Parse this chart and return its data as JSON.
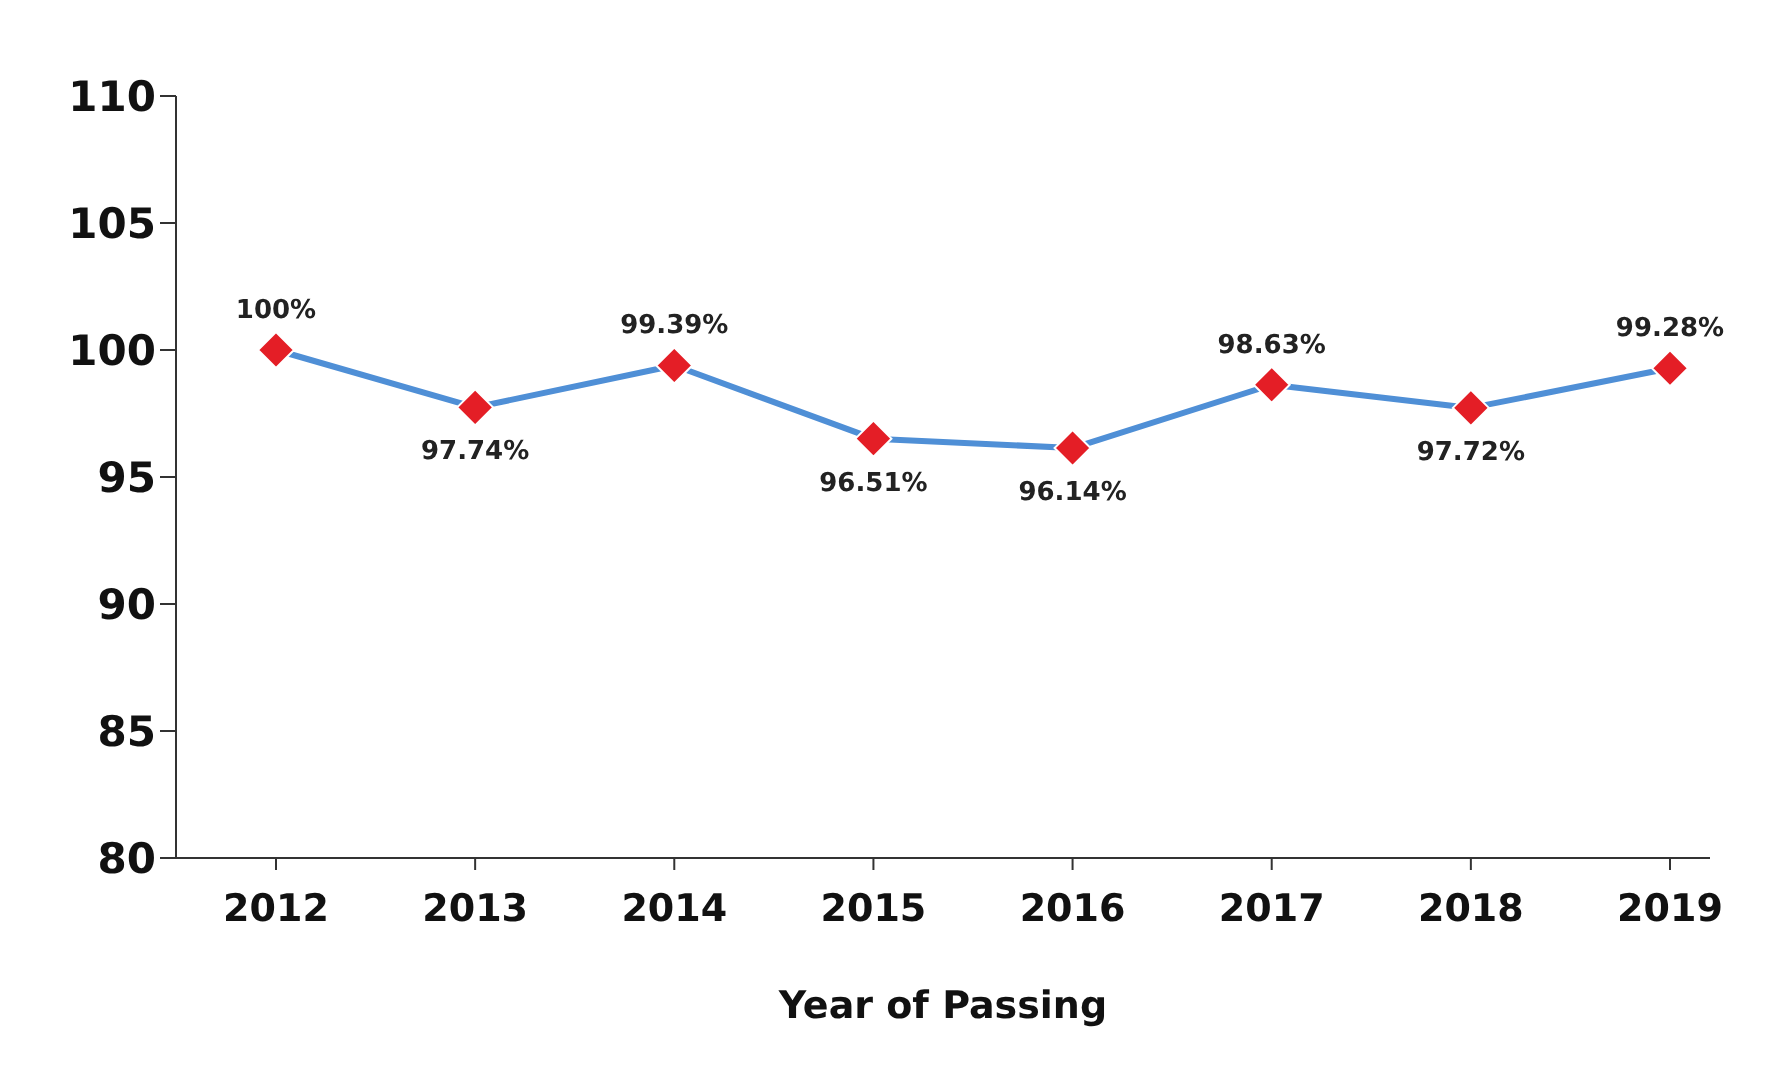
{
  "chart_data": {
    "type": "line",
    "xlabel": "Year of Passing",
    "categories": [
      "2012",
      "2013",
      "2014",
      "2015",
      "2016",
      "2017",
      "2018",
      "2019"
    ],
    "series": [
      {
        "color": "#4f8fd6",
        "colors": [
          "#e41e26",
          "#e41e26",
          "#e41e26",
          "#e41e26",
          "#e41e26",
          "#e41e26",
          "#e41e26",
          "#e41e26"
        ],
        "values": [
          100,
          97.74,
          99.39,
          96.51,
          96.14,
          98.63,
          97.72,
          99.28
        ],
        "value_labels": [
          "100%",
          "97.74%",
          "99.39%",
          "96.51%",
          "96.14%",
          "98.63%",
          "97.72%",
          "99.28%"
        ]
      }
    ],
    "ylim": [
      80,
      110
    ],
    "yticks": [
      80,
      85,
      90,
      95,
      100,
      105,
      110
    ],
    "grid": false,
    "legend": false,
    "marker": "diamond",
    "line_style": "solid"
  }
}
